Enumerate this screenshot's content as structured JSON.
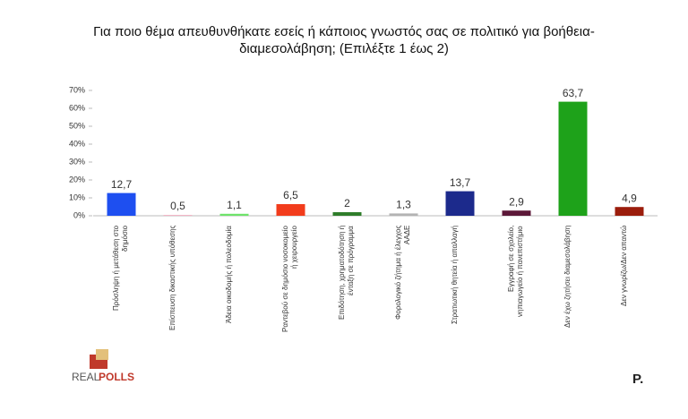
{
  "chart_data": {
    "type": "bar",
    "title": "Για ποιο θέμα απευθυνθήκατε εσείς ή κάποιος γνωστός σας σε πολιτικό για βοήθεια-διαμεσολάβηση; (Επιλέξτε 1 έως 2)",
    "categories": [
      "Πρόσληψη ή μετάθεση στο δημόσιο",
      "Επίσπευση δικαστικής υπόθεσης",
      "Άδεια οικοδομής ή πολεοδομία",
      "Ραντεβού σε δημόσιο νοσοκομείο ή χειρουργείο",
      "Επιδότηση, χρηματοδότηση ή ένταξη σε πρόγραμμα",
      "Φορολογικό ζήτημα ή έλεγχος ΑΑΔΕ",
      "Στρατιωτική θητεία ή απαλλαγή",
      "Εγγραφή σε σχολείο, νηπιαγωγείο ή πανεπιστήμιο",
      "Δεν έχω ζητήσει διαμεσολάβηση",
      "Δεν γνωρίζω/Δεν απαντώ"
    ],
    "values": [
      12.7,
      0.5,
      1.1,
      6.5,
      2,
      1.3,
      13.7,
      2.9,
      63.7,
      4.9
    ],
    "value_labels": [
      "12,7",
      "0,5",
      "1,1",
      "6,5",
      "2",
      "1,3",
      "13,7",
      "2,9",
      "63,7",
      "4,9"
    ],
    "colors": [
      "#1e4ff0",
      "#f3b6c6",
      "#6ee36a",
      "#f23c1c",
      "#2f7d2a",
      "#b3b3b3",
      "#1c2a8c",
      "#5c1838",
      "#1ea21a",
      "#9b1d0c"
    ],
    "ylim": [
      0,
      70
    ],
    "yticks": [
      {
        "value": 0,
        "label": "0%"
      },
      {
        "value": 10,
        "label": "10%"
      },
      {
        "value": 20,
        "label": "20%"
      },
      {
        "value": 30,
        "label": "30%"
      },
      {
        "value": 40,
        "label": "40%"
      },
      {
        "value": 50,
        "label": "50%"
      },
      {
        "value": 60,
        "label": "60%"
      },
      {
        "value": 70,
        "label": "70%"
      }
    ]
  },
  "branding": {
    "left_logo": [
      "REAL",
      "POLLS"
    ],
    "right_logo": "P."
  }
}
